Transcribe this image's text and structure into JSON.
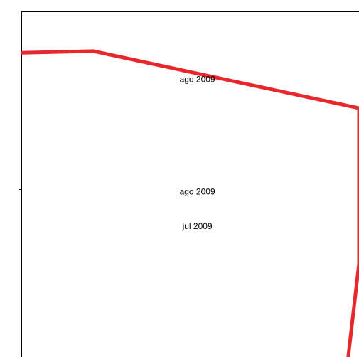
{
  "chart_data": {
    "type": "line",
    "title": "",
    "xlabel": "",
    "ylabel": "",
    "grid": false,
    "legend": "none",
    "series": [
      {
        "color": "#e8262b",
        "points": [
          {
            "x": -1.0,
            "y": 88.0
          },
          {
            "x": 0.0,
            "y": 88.5
          },
          {
            "x": 3.7,
            "y": 72.0
          },
          {
            "x": 3.7,
            "y": 27.0
          },
          {
            "x": 3.55,
            "y": 0.0
          }
        ]
      }
    ],
    "annotations": [
      {
        "text": "ago 2009",
        "x": 1.45,
        "y": 79.5
      },
      {
        "text": "ago 2009",
        "x": 1.45,
        "y": 47.0
      },
      {
        "text": "jul 2009",
        "x": 1.45,
        "y": 37.0
      }
    ],
    "xlim": [
      -1.0,
      3.7
    ],
    "ylim": [
      0.0,
      100.0
    ]
  }
}
